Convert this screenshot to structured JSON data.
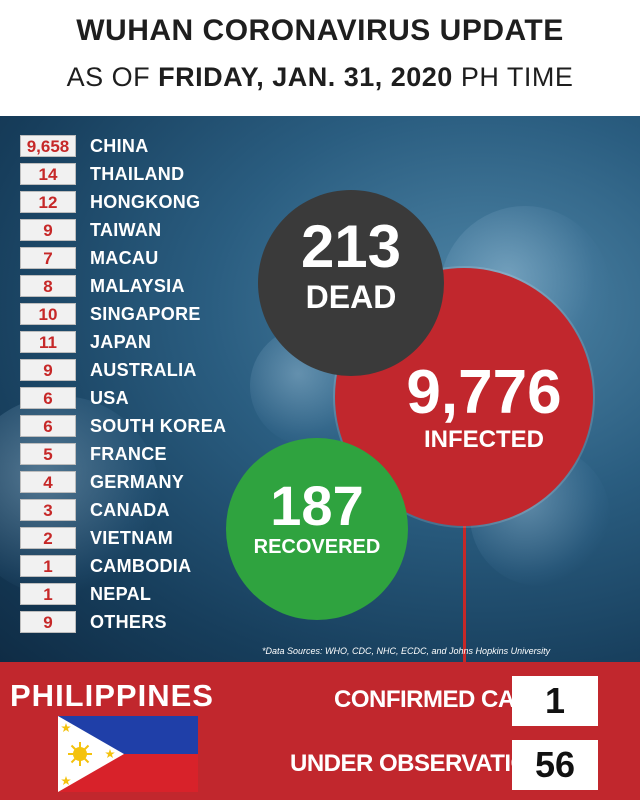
{
  "header": {
    "title": "WUHAN CORONAVIRUS UPDATE",
    "subtitle_prefix": "AS OF",
    "subtitle_date": "FRIDAY, JAN. 31, 2020",
    "subtitle_suffix": "PH TIME"
  },
  "countries": [
    {
      "count": "9,658",
      "name": "CHINA"
    },
    {
      "count": "14",
      "name": "THAILAND"
    },
    {
      "count": "12",
      "name": "HONGKONG"
    },
    {
      "count": "9",
      "name": "TAIWAN"
    },
    {
      "count": "7",
      "name": "MACAU"
    },
    {
      "count": "8",
      "name": "MALAYSIA"
    },
    {
      "count": "10",
      "name": "SINGAPORE"
    },
    {
      "count": "11",
      "name": "JAPAN"
    },
    {
      "count": "9",
      "name": "AUSTRALIA"
    },
    {
      "count": "6",
      "name": "USA"
    },
    {
      "count": "6",
      "name": "SOUTH KOREA"
    },
    {
      "count": "5",
      "name": "FRANCE"
    },
    {
      "count": "4",
      "name": "GERMANY"
    },
    {
      "count": "3",
      "name": "CANADA"
    },
    {
      "count": "2",
      "name": "VIETNAM"
    },
    {
      "count": "1",
      "name": "CAMBODIA"
    },
    {
      "count": "1",
      "name": "NEPAL"
    },
    {
      "count": "9",
      "name": "OTHERS"
    }
  ],
  "stats": {
    "dead": {
      "value": "213",
      "label": "DEAD"
    },
    "infected": {
      "value": "9,776",
      "label": "INFECTED"
    },
    "recovered": {
      "value": "187",
      "label": "RECOVERED"
    }
  },
  "sources": "*Data Sources: WHO, CDC, NHC, ECDC, and Johns Hopkins University",
  "philippines": {
    "title": "PHILIPPINES",
    "confirmed_label": "CONFIRMED CASE",
    "confirmed_value": "1",
    "observation_label": "UNDER OBSERVATION",
    "observation_value": "56"
  },
  "colors": {
    "accent_red": "#c1272d",
    "dead_gray": "#3a3a3a",
    "recovered_green": "#2fa33f",
    "background_blue": "#2a5d80"
  }
}
